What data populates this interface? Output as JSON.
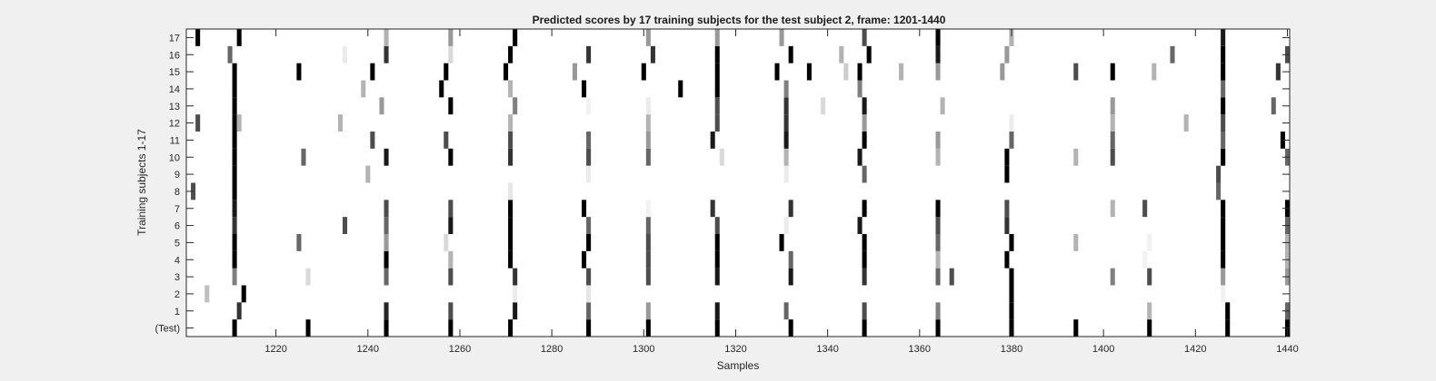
{
  "chart_data": {
    "type": "heatmap",
    "title": "Predicted scores by 17 training subjects for the test subject 2, frame: 1201-1440",
    "xlabel": "Samples",
    "ylabel": "Training subjects 1-17",
    "xlim": [
      1201,
      1440
    ],
    "xticks": [
      1220,
      1240,
      1260,
      1280,
      1300,
      1320,
      1340,
      1360,
      1380,
      1400,
      1420,
      1440
    ],
    "row_labels": [
      "(Test)",
      "1",
      "2",
      "3",
      "4",
      "5",
      "6",
      "7",
      "8",
      "9",
      "10",
      "11",
      "12",
      "13",
      "14",
      "15",
      "16",
      "17"
    ],
    "colormap": "gray (white = 0, black = 1)",
    "grid": false,
    "rows": [
      {
        "label": "(Test)",
        "marks": [
          [
            1211,
            1
          ],
          [
            1227,
            1
          ],
          [
            1244,
            1
          ],
          [
            1258,
            1
          ],
          [
            1271,
            1
          ],
          [
            1288,
            1
          ],
          [
            1301,
            1
          ],
          [
            1316,
            1
          ],
          [
            1332,
            1
          ],
          [
            1348,
            1
          ],
          [
            1364,
            1
          ],
          [
            1380,
            1
          ],
          [
            1394,
            1
          ],
          [
            1410,
            1
          ],
          [
            1427,
            1
          ],
          [
            1440,
            1
          ]
        ]
      },
      {
        "label": "1",
        "marks": [
          [
            1212,
            0.8
          ],
          [
            1244,
            0.85
          ],
          [
            1258,
            0.7
          ],
          [
            1272,
            0.9
          ],
          [
            1288,
            0.6
          ],
          [
            1301,
            0.4
          ],
          [
            1316,
            0.9
          ],
          [
            1331,
            0.6
          ],
          [
            1348,
            0.7
          ],
          [
            1364,
            0.5
          ],
          [
            1380,
            1
          ],
          [
            1410,
            0.3
          ],
          [
            1427,
            1
          ],
          [
            1440,
            0.6
          ]
        ]
      },
      {
        "label": "2",
        "marks": [
          [
            1205,
            0.25
          ],
          [
            1213,
            1
          ],
          [
            1272,
            0.08
          ],
          [
            1288,
            0.1
          ],
          [
            1380,
            1
          ],
          [
            1426,
            0.05
          ]
        ]
      },
      {
        "label": "3",
        "marks": [
          [
            1211,
            0.5
          ],
          [
            1227,
            0.15
          ],
          [
            1244,
            0.6
          ],
          [
            1258,
            0.7
          ],
          [
            1272,
            0.8
          ],
          [
            1288,
            0.7
          ],
          [
            1301,
            0.7
          ],
          [
            1316,
            0.9
          ],
          [
            1332,
            0.9
          ],
          [
            1348,
            0.8
          ],
          [
            1364,
            0.6
          ],
          [
            1367,
            0.7
          ],
          [
            1380,
            1
          ],
          [
            1402,
            0.5
          ],
          [
            1410,
            0.7
          ],
          [
            1426,
            0.4
          ],
          [
            1440,
            0.4
          ]
        ]
      },
      {
        "label": "4",
        "marks": [
          [
            1211,
            1
          ],
          [
            1244,
            1
          ],
          [
            1258,
            0.3
          ],
          [
            1271,
            1
          ],
          [
            1287,
            1
          ],
          [
            1301,
            0.7
          ],
          [
            1316,
            1
          ],
          [
            1332,
            0.6
          ],
          [
            1348,
            1
          ],
          [
            1364,
            0.3
          ],
          [
            1379,
            1
          ],
          [
            1409,
            0.05
          ],
          [
            1426,
            1
          ],
          [
            1440,
            0.3
          ]
        ]
      },
      {
        "label": "5",
        "marks": [
          [
            1211,
            1
          ],
          [
            1225,
            0.6
          ],
          [
            1244,
            0.4
          ],
          [
            1257,
            0.15
          ],
          [
            1271,
            1
          ],
          [
            1288,
            1
          ],
          [
            1301,
            0.7
          ],
          [
            1316,
            1
          ],
          [
            1330,
            1
          ],
          [
            1348,
            1
          ],
          [
            1364,
            0.6
          ],
          [
            1380,
            1
          ],
          [
            1394,
            0.3
          ],
          [
            1410,
            0.05
          ],
          [
            1426,
            1
          ],
          [
            1440,
            0.3
          ]
        ]
      },
      {
        "label": "6",
        "marks": [
          [
            1211,
            0.8
          ],
          [
            1235,
            0.7
          ],
          [
            1244,
            0.6
          ],
          [
            1258,
            0.9
          ],
          [
            1271,
            1
          ],
          [
            1288,
            0.6
          ],
          [
            1301,
            0.6
          ],
          [
            1316,
            0.7
          ],
          [
            1331,
            0.08
          ],
          [
            1347,
            0.9
          ],
          [
            1364,
            0.7
          ],
          [
            1379,
            0.8
          ],
          [
            1426,
            1
          ],
          [
            1440,
            0.6
          ]
        ]
      },
      {
        "label": "7",
        "marks": [
          [
            1211,
            0.9
          ],
          [
            1244,
            0.7
          ],
          [
            1258,
            0.7
          ],
          [
            1271,
            1
          ],
          [
            1287,
            1
          ],
          [
            1301,
            0.05
          ],
          [
            1315,
            0.8
          ],
          [
            1332,
            0.8
          ],
          [
            1348,
            1
          ],
          [
            1364,
            1
          ],
          [
            1379,
            0.7
          ],
          [
            1402,
            0.3
          ],
          [
            1409,
            0.7
          ],
          [
            1426,
            1
          ],
          [
            1440,
            1
          ]
        ]
      },
      {
        "label": "8",
        "marks": [
          [
            1202,
            0.7
          ],
          [
            1211,
            1
          ],
          [
            1271,
            0.1
          ],
          [
            1425,
            0.6
          ]
        ]
      },
      {
        "label": "9",
        "marks": [
          [
            1211,
            1
          ],
          [
            1240,
            0.3
          ],
          [
            1288,
            0.08
          ],
          [
            1331,
            0.08
          ],
          [
            1348,
            0.6
          ],
          [
            1379,
            1
          ],
          [
            1425,
            0.7
          ]
        ]
      },
      {
        "label": "10",
        "marks": [
          [
            1211,
            1
          ],
          [
            1226,
            0.6
          ],
          [
            1244,
            0.9
          ],
          [
            1258,
            1
          ],
          [
            1271,
            0.8
          ],
          [
            1288,
            0.7
          ],
          [
            1301,
            0.6
          ],
          [
            1317,
            0.15
          ],
          [
            1331,
            0.3
          ],
          [
            1347,
            0.9
          ],
          [
            1364,
            0.3
          ],
          [
            1379,
            1
          ],
          [
            1394,
            0.3
          ],
          [
            1402,
            0.7
          ],
          [
            1426,
            1
          ],
          [
            1440,
            0.6
          ]
        ]
      },
      {
        "label": "11",
        "marks": [
          [
            1211,
            1
          ],
          [
            1241,
            0.7
          ],
          [
            1257,
            0.7
          ],
          [
            1271,
            0.7
          ],
          [
            1288,
            0.6
          ],
          [
            1301,
            0.4
          ],
          [
            1315,
            0.9
          ],
          [
            1331,
            0.9
          ],
          [
            1348,
            1
          ],
          [
            1364,
            0.4
          ],
          [
            1380,
            0.6
          ],
          [
            1402,
            0.6
          ],
          [
            1426,
            0.6
          ],
          [
            1439,
            1
          ]
        ]
      },
      {
        "label": "12",
        "marks": [
          [
            1203,
            0.7
          ],
          [
            1211,
            1
          ],
          [
            1212,
            0.3
          ],
          [
            1234,
            0.3
          ],
          [
            1271,
            0.3
          ],
          [
            1301,
            0.3
          ],
          [
            1316,
            0.7
          ],
          [
            1331,
            0.8
          ],
          [
            1348,
            0.4
          ],
          [
            1380,
            0.08
          ],
          [
            1402,
            0.3
          ],
          [
            1418,
            0.3
          ],
          [
            1426,
            0.7
          ]
        ]
      },
      {
        "label": "13",
        "marks": [
          [
            1211,
            1
          ],
          [
            1243,
            0.4
          ],
          [
            1258,
            1
          ],
          [
            1272,
            0.5
          ],
          [
            1288,
            0.05
          ],
          [
            1301,
            0.08
          ],
          [
            1316,
            0.7
          ],
          [
            1331,
            0.8
          ],
          [
            1339,
            0.15
          ],
          [
            1348,
            0.9
          ],
          [
            1365,
            0.3
          ],
          [
            1402,
            0.4
          ],
          [
            1426,
            1
          ],
          [
            1437,
            0.6
          ]
        ]
      },
      {
        "label": "14",
        "marks": [
          [
            1211,
            1
          ],
          [
            1239,
            0.3
          ],
          [
            1256,
            1
          ],
          [
            1271,
            0.3
          ],
          [
            1287,
            1
          ],
          [
            1308,
            1
          ],
          [
            1316,
            1
          ],
          [
            1331,
            0.5
          ],
          [
            1347,
            0.5
          ],
          [
            1426,
            0.6
          ]
        ]
      },
      {
        "label": "15",
        "marks": [
          [
            1211,
            1
          ],
          [
            1225,
            1
          ],
          [
            1241,
            1
          ],
          [
            1257,
            1
          ],
          [
            1270,
            1
          ],
          [
            1285,
            0.4
          ],
          [
            1300,
            1
          ],
          [
            1316,
            1
          ],
          [
            1329,
            1
          ],
          [
            1336,
            1
          ],
          [
            1344,
            0.2
          ],
          [
            1347,
            1
          ],
          [
            1356,
            0.3
          ],
          [
            1364,
            0.4
          ],
          [
            1378,
            0.4
          ],
          [
            1394,
            0.7
          ],
          [
            1402,
            1
          ],
          [
            1411,
            0.3
          ],
          [
            1426,
            1
          ],
          [
            1438,
            0.8
          ]
        ]
      },
      {
        "label": "16",
        "marks": [
          [
            1210,
            0.6
          ],
          [
            1235,
            0.08
          ],
          [
            1244,
            0.8
          ],
          [
            1258,
            0.15
          ],
          [
            1271,
            1
          ],
          [
            1288,
            0.8
          ],
          [
            1302,
            0.8
          ],
          [
            1316,
            1
          ],
          [
            1332,
            1
          ],
          [
            1343,
            0.3
          ],
          [
            1349,
            1
          ],
          [
            1364,
            0.9
          ],
          [
            1379,
            0.4
          ],
          [
            1415,
            0.6
          ],
          [
            1426,
            1
          ],
          [
            1440,
            0.7
          ]
        ]
      },
      {
        "label": "17",
        "marks": [
          [
            1203,
            1
          ],
          [
            1212,
            1
          ],
          [
            1244,
            0.3
          ],
          [
            1258,
            0.4
          ],
          [
            1272,
            1
          ],
          [
            1301,
            0.4
          ],
          [
            1316,
            0.4
          ],
          [
            1330,
            0.4
          ],
          [
            1348,
            0.7
          ],
          [
            1364,
            1
          ],
          [
            1380,
            0.3
          ],
          [
            1426,
            0.9
          ]
        ]
      }
    ]
  }
}
